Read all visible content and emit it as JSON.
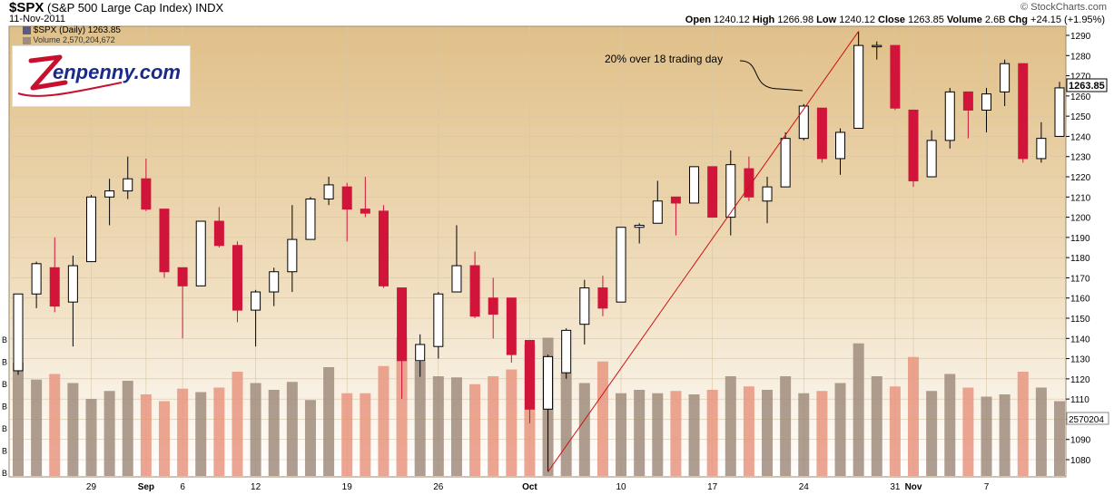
{
  "header": {
    "symbol": "$SPX",
    "description": "(S&P 500 Large Cap Index)",
    "exchange": "INDX",
    "date": "11-Nov-2011",
    "brand": "© StockCharts.com",
    "open_label": "Open",
    "open": "1240.12",
    "high_label": "High",
    "high": "1266.98",
    "low_label": "Low",
    "low": "1240.12",
    "close_label": "Close",
    "close": "1263.85",
    "volume_label": "Volume",
    "volume": "2.6B",
    "chg_label": "Chg",
    "chg": "+24.15 (+1.95%)"
  },
  "legend": {
    "price": "$SPX (Daily) 1263.85",
    "volume": "Volume 2,570,204,672"
  },
  "logo": {
    "text": "Zenpenny.com"
  },
  "annotation": {
    "text": "20% over 18 trading day"
  },
  "price_tag": "1263.85",
  "volume_tag": "2570204",
  "colors": {
    "up": "#ffffff",
    "down": "#d0143a",
    "vol_up": "#a08c7c",
    "vol_down": "#e8957f",
    "trend": "#d01010",
    "bg_top": "#e4c89a",
    "bg_bottom": "#ffffff"
  },
  "chart_data": {
    "type": "candlestick",
    "ylim": [
      1072,
      1295
    ],
    "yticks": [
      1080,
      1090,
      1100,
      1110,
      1120,
      1130,
      1140,
      1150,
      1160,
      1170,
      1180,
      1190,
      1200,
      1210,
      1220,
      1230,
      1240,
      1250,
      1260,
      1270,
      1280,
      1290
    ],
    "volume_axis_labels": [
      "B",
      "B",
      "B",
      "B",
      "B",
      "B",
      "B"
    ],
    "x_labels": [
      {
        "label": "29",
        "index": 4
      },
      {
        "label": "Sep",
        "index": 7
      },
      {
        "label": "6",
        "index": 9
      },
      {
        "label": "12",
        "index": 13
      },
      {
        "label": "19",
        "index": 18
      },
      {
        "label": "26",
        "index": 23
      },
      {
        "label": "Oct",
        "index": 28
      },
      {
        "label": "10",
        "index": 33
      },
      {
        "label": "17",
        "index": 38
      },
      {
        "label": "24",
        "index": 43
      },
      {
        "label": "31",
        "index": 48
      },
      {
        "label": "Nov",
        "index": 49
      },
      {
        "label": "7",
        "index": 53
      }
    ],
    "candles": [
      {
        "o": 1124,
        "h": 1162,
        "l": 1122,
        "c": 1162,
        "v": 1.0
      },
      {
        "o": 1162,
        "h": 1178,
        "l": 1155,
        "c": 1177,
        "v": 0.85
      },
      {
        "o": 1175,
        "h": 1190,
        "l": 1153,
        "c": 1156,
        "v": 0.9
      },
      {
        "o": 1158,
        "h": 1181,
        "l": 1136,
        "c": 1176,
        "v": 0.82
      },
      {
        "o": 1178,
        "h": 1211,
        "l": 1178,
        "c": 1210,
        "v": 0.68
      },
      {
        "o": 1210,
        "h": 1219,
        "l": 1196,
        "c": 1213,
        "v": 0.75
      },
      {
        "o": 1213,
        "h": 1230,
        "l": 1209,
        "c": 1219,
        "v": 0.84
      },
      {
        "o": 1219,
        "h": 1229,
        "l": 1203,
        "c": 1204,
        "v": 0.72
      },
      {
        "o": 1204,
        "h": 1204,
        "l": 1170,
        "c": 1173,
        "v": 0.66
      },
      {
        "o": 1175,
        "h": 1175,
        "l": 1140,
        "c": 1166,
        "v": 0.77
      },
      {
        "o": 1166,
        "h": 1198,
        "l": 1166,
        "c": 1198,
        "v": 0.74
      },
      {
        "o": 1198,
        "h": 1205,
        "l": 1185,
        "c": 1186,
        "v": 0.78
      },
      {
        "o": 1186,
        "h": 1188,
        "l": 1148,
        "c": 1154,
        "v": 0.92
      },
      {
        "o": 1154,
        "h": 1164,
        "l": 1136,
        "c": 1163,
        "v": 0.82
      },
      {
        "o": 1163,
        "h": 1175,
        "l": 1156,
        "c": 1173,
        "v": 0.76
      },
      {
        "o": 1173,
        "h": 1206,
        "l": 1163,
        "c": 1189,
        "v": 0.83
      },
      {
        "o": 1189,
        "h": 1210,
        "l": 1189,
        "c": 1209,
        "v": 0.67
      },
      {
        "o": 1209,
        "h": 1220,
        "l": 1206,
        "c": 1216,
        "v": 0.96
      },
      {
        "o": 1215,
        "h": 1217,
        "l": 1188,
        "c": 1204,
        "v": 0.73
      },
      {
        "o": 1204,
        "h": 1220,
        "l": 1200,
        "c": 1202,
        "v": 0.73
      },
      {
        "o": 1203,
        "h": 1206,
        "l": 1165,
        "c": 1166,
        "v": 0.97
      },
      {
        "o": 1165,
        "h": 1165,
        "l": 1110,
        "c": 1129,
        "v": 1.22
      },
      {
        "o": 1129,
        "h": 1142,
        "l": 1121,
        "c": 1137,
        "v": 1.01
      },
      {
        "o": 1136,
        "h": 1163,
        "l": 1130,
        "c": 1162,
        "v": 0.88
      },
      {
        "o": 1163,
        "h": 1196,
        "l": 1163,
        "c": 1176,
        "v": 0.87
      },
      {
        "o": 1176,
        "h": 1183,
        "l": 1150,
        "c": 1151,
        "v": 0.81
      },
      {
        "o": 1160,
        "h": 1170,
        "l": 1140,
        "c": 1152,
        "v": 0.88
      },
      {
        "o": 1160,
        "h": 1160,
        "l": 1128,
        "c": 1132,
        "v": 0.94
      },
      {
        "o": 1139,
        "h": 1139,
        "l": 1098,
        "c": 1105,
        "v": 1.16
      },
      {
        "o": 1105,
        "h": 1132,
        "l": 1074,
        "c": 1131,
        "v": 1.22
      },
      {
        "o": 1123,
        "h": 1145,
        "l": 1120,
        "c": 1144,
        "v": 0.91
      },
      {
        "o": 1147,
        "h": 1169,
        "l": 1137,
        "c": 1165,
        "v": 0.82
      },
      {
        "o": 1165,
        "h": 1171,
        "l": 1151,
        "c": 1155,
        "v": 1.01
      },
      {
        "o": 1158,
        "h": 1195,
        "l": 1158,
        "c": 1195,
        "v": 0.73
      },
      {
        "o": 1195,
        "h": 1197,
        "l": 1187,
        "c": 1196,
        "v": 0.76
      },
      {
        "o": 1197,
        "h": 1218,
        "l": 1197,
        "c": 1208,
        "v": 0.73
      },
      {
        "o": 1210,
        "h": 1210,
        "l": 1191,
        "c": 1207,
        "v": 0.75
      },
      {
        "o": 1207,
        "h": 1225,
        "l": 1207,
        "c": 1225,
        "v": 0.72
      },
      {
        "o": 1225,
        "h": 1225,
        "l": 1200,
        "c": 1200,
        "v": 0.76
      },
      {
        "o": 1200,
        "h": 1233,
        "l": 1191,
        "c": 1226,
        "v": 0.88
      },
      {
        "o": 1224,
        "h": 1230,
        "l": 1208,
        "c": 1210,
        "v": 0.79
      },
      {
        "o": 1208,
        "h": 1220,
        "l": 1197,
        "c": 1215,
        "v": 0.76
      },
      {
        "o": 1215,
        "h": 1242,
        "l": 1215,
        "c": 1239,
        "v": 0.88
      },
      {
        "o": 1239,
        "h": 1256,
        "l": 1238,
        "c": 1255,
        "v": 0.73
      },
      {
        "o": 1254,
        "h": 1254,
        "l": 1227,
        "c": 1229,
        "v": 0.75
      },
      {
        "o": 1229,
        "h": 1244,
        "l": 1221,
        "c": 1242,
        "v": 0.82
      },
      {
        "o": 1244,
        "h": 1292,
        "l": 1244,
        "c": 1285,
        "v": 1.17
      },
      {
        "o": 1285,
        "h": 1287,
        "l": 1278,
        "c": 1285,
        "v": 0.88
      },
      {
        "o": 1285,
        "h": 1285,
        "l": 1253,
        "c": 1254,
        "v": 0.79
      },
      {
        "o": 1253,
        "h": 1253,
        "l": 1215,
        "c": 1218,
        "v": 1.05
      },
      {
        "o": 1220,
        "h": 1243,
        "l": 1220,
        "c": 1238,
        "v": 0.75
      },
      {
        "o": 1238,
        "h": 1264,
        "l": 1234,
        "c": 1262,
        "v": 0.9
      },
      {
        "o": 1262,
        "h": 1262,
        "l": 1239,
        "c": 1253,
        "v": 0.78
      },
      {
        "o": 1253,
        "h": 1264,
        "l": 1242,
        "c": 1261,
        "v": 0.7
      },
      {
        "o": 1262,
        "h": 1278,
        "l": 1255,
        "c": 1276,
        "v": 0.72
      },
      {
        "o": 1276,
        "h": 1276,
        "l": 1227,
        "c": 1229,
        "v": 0.92
      },
      {
        "o": 1229,
        "h": 1247,
        "l": 1227,
        "c": 1239,
        "v": 0.78
      },
      {
        "o": 1240,
        "h": 1267,
        "l": 1240,
        "c": 1264,
        "v": 0.66
      }
    ]
  }
}
